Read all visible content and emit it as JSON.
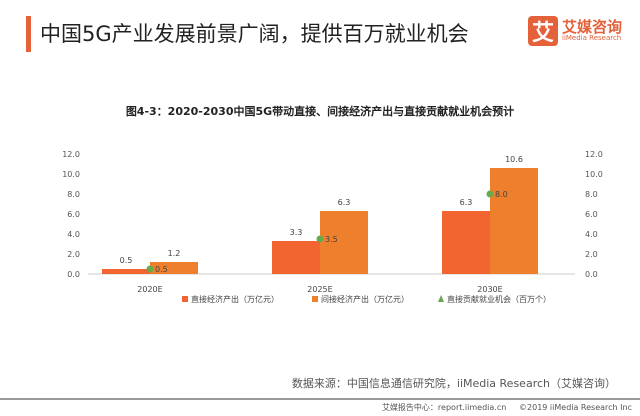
{
  "header": {
    "title": "中国5G产业发展前景广阔，提供百万就业机会",
    "logo_cn": "艾媒咨询",
    "logo_en": "iiMedia Research",
    "logo_mark": "艾"
  },
  "chart_data": {
    "type": "bar",
    "title": "图4-3：2020-2030中国5G带动直接、间接经济产出与直接贡献就业机会预计",
    "categories": [
      "2020E",
      "2025E",
      "2030E"
    ],
    "series": [
      {
        "name": "直接经济产出（万亿元）",
        "type": "bar",
        "color": "#f26430",
        "values": [
          0.5,
          3.3,
          6.3
        ]
      },
      {
        "name": "间接经济产出（万亿元）",
        "type": "bar",
        "color": "#ee7f2d",
        "values": [
          1.2,
          6.3,
          10.6
        ]
      },
      {
        "name": "直接贡献就业机会（百万个）",
        "type": "scatter",
        "axis": "right",
        "color": "#6aa84f",
        "values": [
          0.5,
          3.5,
          8.0
        ]
      }
    ],
    "ylim": [
      0,
      12
    ],
    "y2lim": [
      0,
      12
    ],
    "yticks": [
      "0.0",
      "2.0",
      "4.0",
      "6.0",
      "8.0",
      "10.0",
      "12.0"
    ],
    "grid": false,
    "legend": "bottom"
  },
  "footer": {
    "source": "数据来源：中国信息通信研究院，iiMedia Research（艾媒咨询）",
    "report_center": "艾媒报告中心：report.iimedia.cn",
    "copyright": "©2019  iiMedia Research  Inc"
  }
}
